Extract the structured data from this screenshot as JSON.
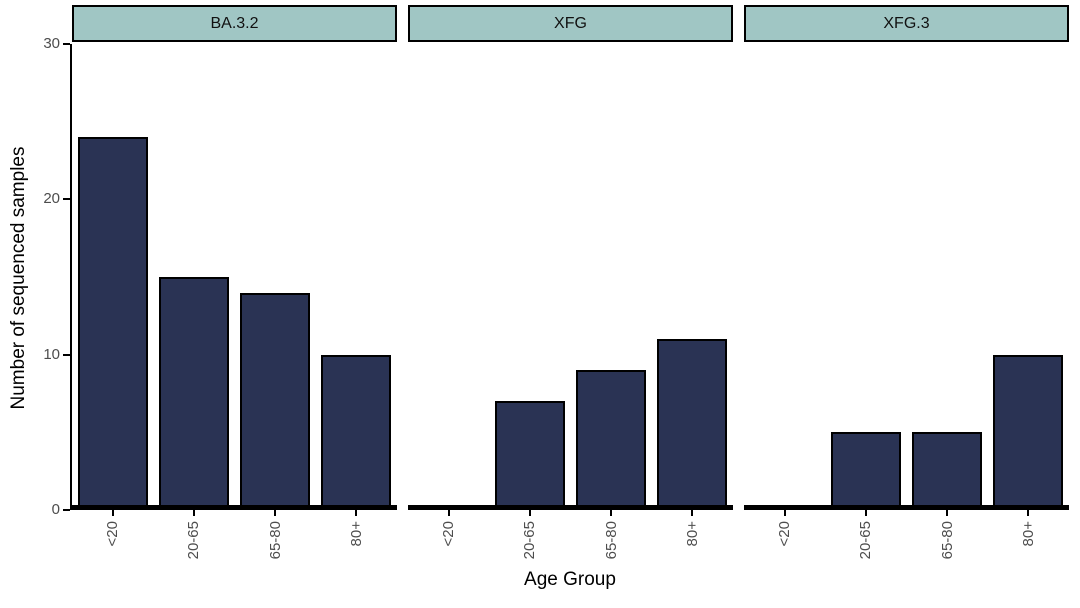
{
  "chart_data": {
    "type": "bar",
    "title": "",
    "xlabel": "Age Group",
    "ylabel": "Number of sequenced samples",
    "categories": [
      "<20",
      "20-65",
      "65-80",
      "80+"
    ],
    "facets": [
      {
        "label": "BA.3.2",
        "values": [
          24,
          15,
          14,
          10
        ]
      },
      {
        "label": "XFG",
        "values": [
          0,
          7,
          9,
          11
        ]
      },
      {
        "label": "XFG.3",
        "values": [
          0,
          5,
          5,
          10
        ]
      }
    ],
    "yticks": [
      0,
      10,
      20,
      30
    ],
    "ylim": [
      0,
      30
    ],
    "legend": "none",
    "grid": false
  },
  "colors": {
    "bar_fill": "#2a3354",
    "bar_border": "#000000",
    "strip_fill": "#a0c6c4",
    "strip_border": "#000000",
    "axis_line": "#000000",
    "tick_label": "#4d4d4d",
    "background": "#ffffff"
  }
}
